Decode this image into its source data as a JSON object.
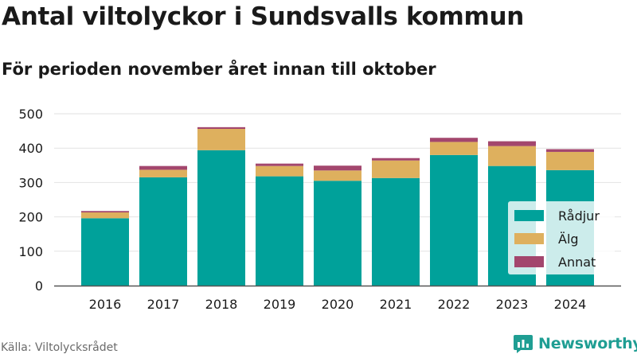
{
  "title": "Antal viltolyckor i Sundsvalls kommun",
  "subtitle": "För perioden november året innan till oktober",
  "source": "Källa: Viltolycksrådet",
  "brand": {
    "name": "Newsworthy",
    "icon": "newsworthy-logo-icon",
    "color": "#1f9e93"
  },
  "chart_data": {
    "type": "bar",
    "stacked": true,
    "categories": [
      "2016",
      "2017",
      "2018",
      "2019",
      "2020",
      "2021",
      "2022",
      "2023",
      "2024"
    ],
    "series": [
      {
        "name": "Rådjur",
        "color": "#00a19a",
        "values": [
          196,
          315,
          394,
          318,
          305,
          313,
          380,
          348,
          336
        ]
      },
      {
        "name": "Älg",
        "color": "#deb05e",
        "values": [
          17,
          22,
          62,
          30,
          30,
          51,
          38,
          58,
          53
        ]
      },
      {
        "name": "Annat",
        "color": "#a3466d",
        "values": [
          4,
          11,
          5,
          7,
          14,
          7,
          12,
          14,
          8
        ]
      }
    ],
    "ylim": [
      0,
      500
    ],
    "yticks": [
      "0",
      "100",
      "200",
      "300",
      "400",
      "500"
    ],
    "grid": true,
    "legend": "bottom-right",
    "xlabel": "",
    "ylabel": ""
  }
}
